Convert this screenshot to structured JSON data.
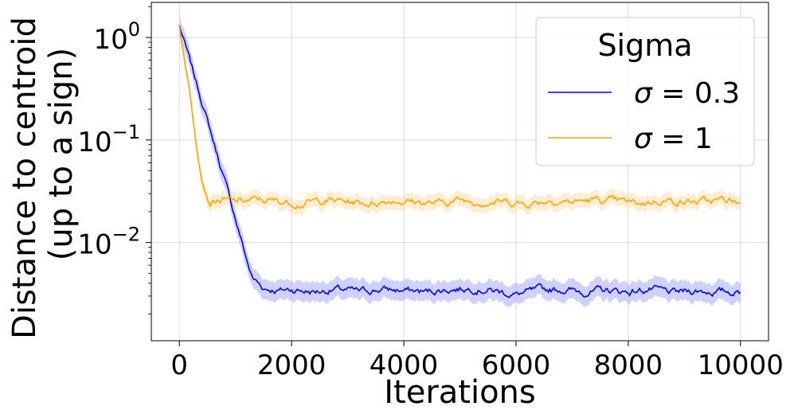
{
  "chart_data": {
    "type": "line",
    "title": "",
    "xlabel": "Iterations",
    "ylabel_lines": [
      "Distance to centroid",
      "(up to a sign)"
    ],
    "xlim": [
      -500,
      10500
    ],
    "ylim": [
      0.0011,
      2.2
    ],
    "yscale": "log",
    "grid": true,
    "x_ticks": [
      {
        "value": 0,
        "label": "0"
      },
      {
        "value": 2000,
        "label": "2000"
      },
      {
        "value": 4000,
        "label": "4000"
      },
      {
        "value": 6000,
        "label": "6000"
      },
      {
        "value": 8000,
        "label": "8000"
      },
      {
        "value": 10000,
        "label": "10000"
      }
    ],
    "y_ticks": [
      {
        "value": 1,
        "base": "10",
        "exp": "0"
      },
      {
        "value": 0.1,
        "base": "10",
        "exp": "−1"
      },
      {
        "value": 0.01,
        "base": "10",
        "exp": "−2"
      }
    ],
    "legend": {
      "title": "Sigma",
      "placement": "top-right",
      "entries": [
        {
          "symbol": "σ",
          "rest": " = 0.3",
          "color": "#0000ff"
        },
        {
          "symbol": "σ",
          "rest": " = 1",
          "color": "#ffa500"
        }
      ]
    },
    "series": [
      {
        "color": "#0000ff",
        "band_color": "#9999ff",
        "x": [
          0,
          100,
          200,
          400,
          600,
          800,
          1000,
          1200,
          1300,
          1500,
          1800,
          2000,
          2400,
          2800,
          3200,
          3600,
          4000,
          4400,
          4800,
          5200,
          5600,
          6000,
          6400,
          6800,
          7200,
          7600,
          8000,
          8400,
          8800,
          9200,
          9600,
          10000
        ],
        "y": [
          1.3,
          0.85,
          0.55,
          0.24,
          0.1,
          0.042,
          0.017,
          0.0068,
          0.0045,
          0.0036,
          0.0034,
          0.0035,
          0.0033,
          0.0035,
          0.0033,
          0.0035,
          0.0034,
          0.0033,
          0.0035,
          0.0036,
          0.0034,
          0.0031,
          0.0034,
          0.0035,
          0.0033,
          0.0034,
          0.0033,
          0.0035,
          0.0032,
          0.0034,
          0.0033,
          0.0033
        ],
        "band_ratio": 1.25
      },
      {
        "color": "#ffa500",
        "band_color": "#ffd9a0",
        "x": [
          0,
          100,
          200,
          300,
          400,
          500,
          550,
          700,
          1000,
          1400,
          1800,
          2200,
          2600,
          3000,
          3400,
          3800,
          4200,
          4600,
          5000,
          5400,
          5800,
          6200,
          6600,
          7000,
          7400,
          7800,
          8200,
          8600,
          9000,
          9400,
          9800,
          10000
        ],
        "y": [
          1.3,
          0.6,
          0.25,
          0.1,
          0.045,
          0.028,
          0.025,
          0.026,
          0.025,
          0.026,
          0.025,
          0.024,
          0.026,
          0.025,
          0.024,
          0.026,
          0.025,
          0.024,
          0.026,
          0.025,
          0.025,
          0.024,
          0.026,
          0.025,
          0.026,
          0.025,
          0.024,
          0.026,
          0.025,
          0.025,
          0.026,
          0.024
        ],
        "band_ratio": 1.18
      }
    ]
  }
}
